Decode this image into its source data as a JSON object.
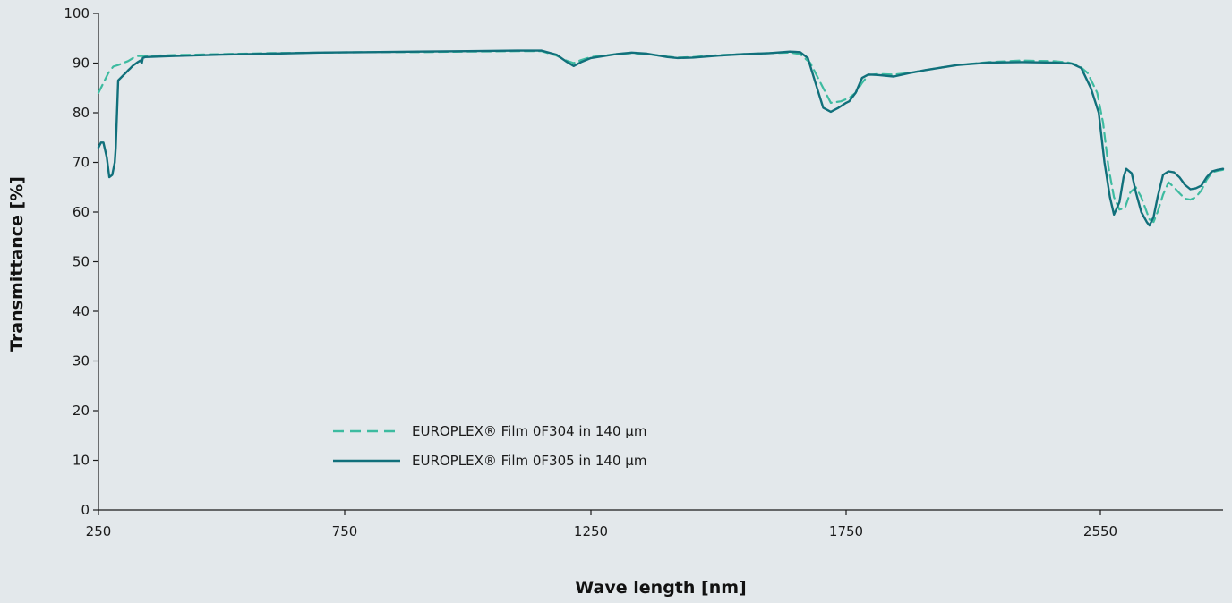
{
  "chart_data": {
    "type": "line",
    "xlabel": "Wave length [nm]",
    "ylabel": "Transmittance [%]",
    "ylim": [
      0,
      100
    ],
    "x_ticks": [
      "250",
      "750",
      "1250",
      "1750",
      "2550"
    ],
    "y_ticks": [
      0,
      10,
      20,
      30,
      40,
      50,
      60,
      70,
      80,
      90,
      100
    ],
    "grid": false,
    "legend_position": "bottom-left",
    "series": [
      {
        "name": "EUROPLEX® Film 0F304 in 140 µm",
        "color": "#3dbba0",
        "dash": "dashed",
        "points": [
          [
            250,
            84
          ],
          [
            260,
            86
          ],
          [
            270,
            88
          ],
          [
            280,
            89.3
          ],
          [
            290,
            89.6
          ],
          [
            300,
            90
          ],
          [
            310,
            90.4
          ],
          [
            320,
            91
          ],
          [
            330,
            91.4
          ],
          [
            340,
            91.4
          ],
          [
            400,
            91.6
          ],
          [
            500,
            91.8
          ],
          [
            600,
            92
          ],
          [
            700,
            92.1
          ],
          [
            800,
            92.2
          ],
          [
            900,
            92.2
          ],
          [
            1000,
            92.3
          ],
          [
            1100,
            92.4
          ],
          [
            1150,
            92.4
          ],
          [
            1180,
            91.5
          ],
          [
            1200,
            90.5
          ],
          [
            1215,
            90
          ],
          [
            1230,
            90.6
          ],
          [
            1250,
            91.2
          ],
          [
            1300,
            91.8
          ],
          [
            1330,
            92
          ],
          [
            1360,
            91.8
          ],
          [
            1400,
            91.3
          ],
          [
            1420,
            91.1
          ],
          [
            1450,
            91.2
          ],
          [
            1500,
            91.6
          ],
          [
            1550,
            91.8
          ],
          [
            1600,
            92
          ],
          [
            1640,
            92.1
          ],
          [
            1660,
            91.8
          ],
          [
            1680,
            90
          ],
          [
            1700,
            86
          ],
          [
            1720,
            82
          ],
          [
            1740,
            82.3
          ],
          [
            1760,
            83
          ],
          [
            1780,
            84
          ],
          [
            1800,
            86
          ],
          [
            1820,
            87.6
          ],
          [
            1850,
            87.8
          ],
          [
            1900,
            87.7
          ],
          [
            1950,
            88
          ],
          [
            2000,
            88.6
          ],
          [
            2100,
            89.6
          ],
          [
            2200,
            90.2
          ],
          [
            2300,
            90.5
          ],
          [
            2400,
            90.4
          ],
          [
            2450,
            90.1
          ],
          [
            2480,
            89.6
          ],
          [
            2510,
            88
          ],
          [
            2540,
            84
          ],
          [
            2560,
            78
          ],
          [
            2580,
            69
          ],
          [
            2600,
            63
          ],
          [
            2620,
            60.5
          ],
          [
            2640,
            60.8
          ],
          [
            2660,
            64
          ],
          [
            2680,
            65
          ],
          [
            2700,
            63
          ],
          [
            2720,
            60
          ],
          [
            2730,
            58.5
          ],
          [
            2745,
            58
          ],
          [
            2760,
            60
          ],
          [
            2780,
            63.5
          ],
          [
            2800,
            66
          ],
          [
            2820,
            65
          ],
          [
            2840,
            63.8
          ],
          [
            2860,
            62.7
          ],
          [
            2880,
            62.5
          ],
          [
            2900,
            63
          ],
          [
            2920,
            64.3
          ],
          [
            2940,
            66.5
          ],
          [
            2960,
            68
          ],
          [
            2980,
            68.3
          ],
          [
            3000,
            68.5
          ]
        ]
      },
      {
        "name": "EUROPLEX® Film 0F305 in 140 µm",
        "color": "#11707b",
        "dash": "solid",
        "points": [
          [
            250,
            73
          ],
          [
            255,
            74
          ],
          [
            260,
            74
          ],
          [
            267,
            71
          ],
          [
            272,
            67
          ],
          [
            278,
            67.5
          ],
          [
            283,
            70
          ],
          [
            285,
            73
          ],
          [
            290,
            86.5
          ],
          [
            300,
            87.5
          ],
          [
            305,
            88
          ],
          [
            310,
            88.5
          ],
          [
            315,
            89
          ],
          [
            320,
            89.5
          ],
          [
            330,
            90.2
          ],
          [
            335,
            90.5
          ],
          [
            338,
            90
          ],
          [
            340,
            91
          ],
          [
            345,
            91.2
          ],
          [
            400,
            91.4
          ],
          [
            500,
            91.7
          ],
          [
            600,
            91.9
          ],
          [
            700,
            92.1
          ],
          [
            800,
            92.2
          ],
          [
            900,
            92.3
          ],
          [
            1000,
            92.4
          ],
          [
            1100,
            92.5
          ],
          [
            1150,
            92.5
          ],
          [
            1180,
            91.7
          ],
          [
            1200,
            90.3
          ],
          [
            1215,
            89.4
          ],
          [
            1230,
            90.2
          ],
          [
            1250,
            91
          ],
          [
            1300,
            91.8
          ],
          [
            1330,
            92.1
          ],
          [
            1360,
            91.9
          ],
          [
            1400,
            91.2
          ],
          [
            1420,
            91
          ],
          [
            1450,
            91.1
          ],
          [
            1500,
            91.5
          ],
          [
            1550,
            91.8
          ],
          [
            1600,
            92
          ],
          [
            1640,
            92.3
          ],
          [
            1660,
            92.2
          ],
          [
            1675,
            91
          ],
          [
            1690,
            86
          ],
          [
            1705,
            81
          ],
          [
            1720,
            80.2
          ],
          [
            1735,
            81
          ],
          [
            1750,
            82
          ],
          [
            1760,
            82.3
          ],
          [
            1780,
            84
          ],
          [
            1800,
            87
          ],
          [
            1820,
            87.7
          ],
          [
            1850,
            87.6
          ],
          [
            1900,
            87.3
          ],
          [
            1950,
            88
          ],
          [
            2000,
            88.6
          ],
          [
            2100,
            89.6
          ],
          [
            2200,
            90.1
          ],
          [
            2300,
            90.2
          ],
          [
            2400,
            90.1
          ],
          [
            2460,
            89.9
          ],
          [
            2490,
            89
          ],
          [
            2520,
            85
          ],
          [
            2545,
            80
          ],
          [
            2565,
            70
          ],
          [
            2585,
            63
          ],
          [
            2600,
            59.5
          ],
          [
            2620,
            62
          ],
          [
            2635,
            67
          ],
          [
            2645,
            68.7
          ],
          [
            2665,
            67.8
          ],
          [
            2680,
            64
          ],
          [
            2700,
            60
          ],
          [
            2720,
            58
          ],
          [
            2730,
            57.3
          ],
          [
            2745,
            59
          ],
          [
            2760,
            63
          ],
          [
            2780,
            67.5
          ],
          [
            2800,
            68.2
          ],
          [
            2820,
            68
          ],
          [
            2840,
            67
          ],
          [
            2860,
            65.5
          ],
          [
            2880,
            64.6
          ],
          [
            2900,
            64.8
          ],
          [
            2920,
            65.3
          ],
          [
            2940,
            67
          ],
          [
            2960,
            68.2
          ],
          [
            2980,
            68.5
          ],
          [
            3000,
            68.7
          ]
        ]
      }
    ]
  }
}
